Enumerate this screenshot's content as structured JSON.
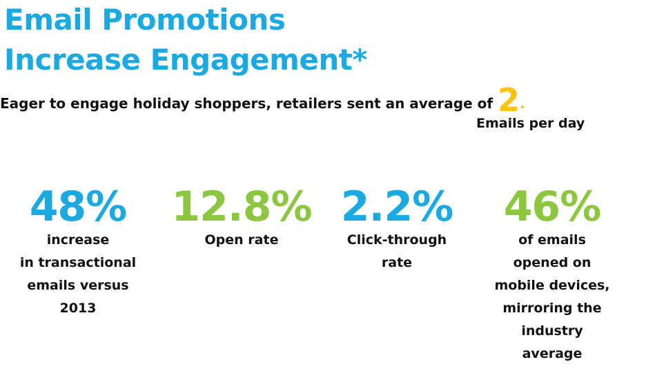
{
  "header": {
    "title_lines": [
      "Email Promotions",
      "Increase Engagement*"
    ],
    "subtitle": "Eager to engage holiday shoppers, retailers sent an average of",
    "highlight": "2",
    "highlight_suffix": ".",
    "highlight_caption": "Emails per day"
  },
  "stats": [
    {
      "value": "48%",
      "lines": [
        "increase",
        "in transactional",
        "emails versus",
        "2013"
      ]
    },
    {
      "value": "12.8%",
      "lines": [
        "Open rate"
      ]
    },
    {
      "value": "2.2%",
      "lines": [
        "Click-through",
        "rate"
      ]
    },
    {
      "value": "46%",
      "lines": [
        "of emails",
        "opened on",
        "mobile devices,",
        "mirroring the",
        "industry",
        "average"
      ]
    }
  ]
}
